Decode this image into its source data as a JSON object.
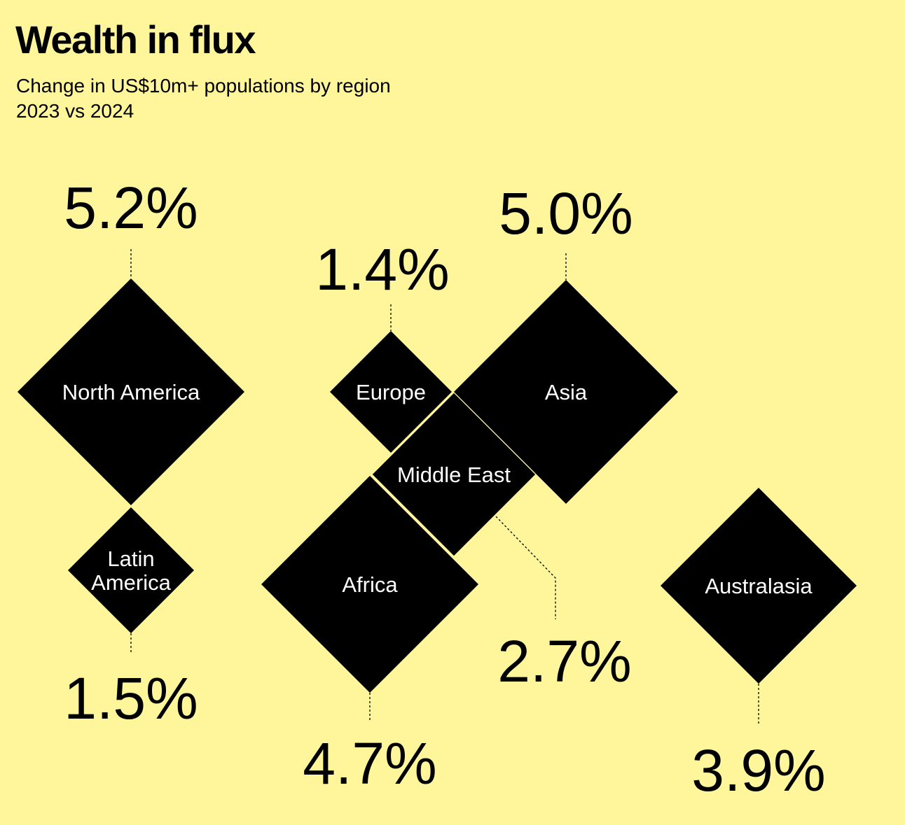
{
  "title": "Wealth in flux",
  "subtitle_line1": "Change in US$10m+ populations by region",
  "subtitle_line2": "2023 vs 2024",
  "colors": {
    "background": "#fff59b",
    "diamond": "#000000",
    "diamond_text": "#ffffff",
    "value_text": "#000000"
  },
  "chart_data": {
    "type": "diamond-map",
    "title": "Wealth in flux",
    "subtitle": "Change in US$10m+ populations by region 2023 vs 2024",
    "unit": "%",
    "regions": [
      {
        "name": "North America",
        "value": 5.2,
        "value_label": "5.2%"
      },
      {
        "name": "Latin America",
        "value": 1.5,
        "value_label": "1.5%"
      },
      {
        "name": "Europe",
        "value": 1.4,
        "value_label": "1.4%"
      },
      {
        "name": "Asia",
        "value": 5.0,
        "value_label": "5.0%"
      },
      {
        "name": "Middle East",
        "value": 2.7,
        "value_label": "2.7%"
      },
      {
        "name": "Africa",
        "value": 4.7,
        "value_label": "4.7%"
      },
      {
        "name": "Australasia",
        "value": 3.9,
        "value_label": "3.9%"
      }
    ]
  }
}
